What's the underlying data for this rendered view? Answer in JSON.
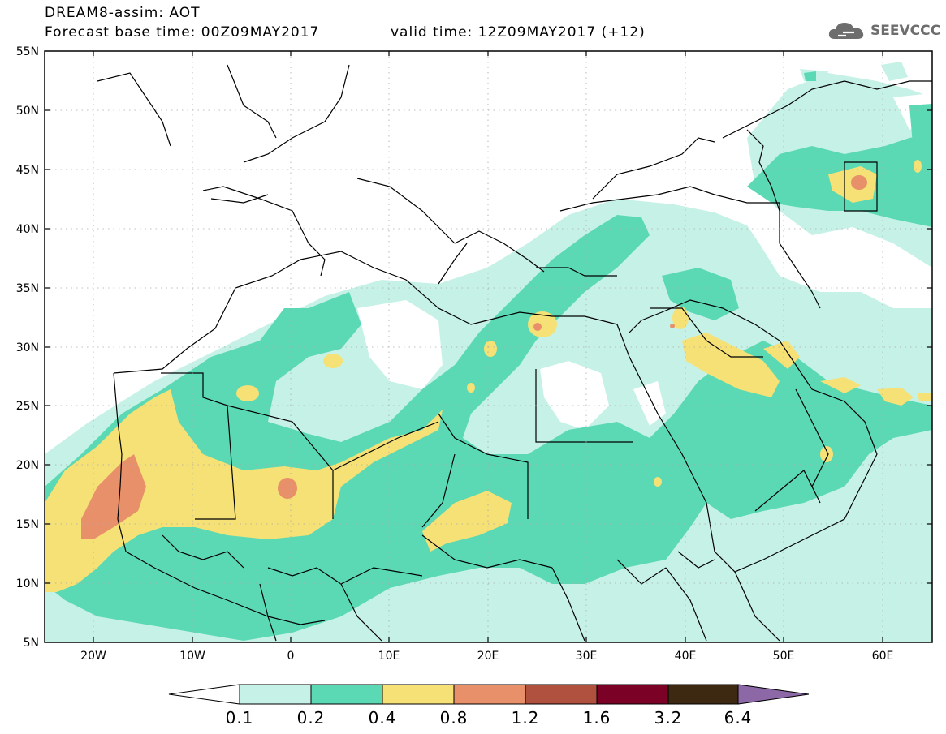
{
  "header": {
    "title": "DREAM8-assim: AOT",
    "base_time": "Forecast base time: 00Z09MAY2017",
    "valid_time": "valid time: 12Z09MAY2017 (+12)"
  },
  "logo": {
    "text": "SEEVCCC",
    "icon": "cloud-icon",
    "color": "#6d6d6d"
  },
  "map": {
    "lon_range": [
      -25,
      65
    ],
    "lat_range": [
      5,
      55
    ],
    "lat_ticks": [
      "5N",
      "10N",
      "15N",
      "20N",
      "25N",
      "30N",
      "35N",
      "40N",
      "45N",
      "50N",
      "55N"
    ],
    "lon_ticks": [
      "20W",
      "10W",
      "0",
      "10E",
      "20E",
      "30E",
      "40E",
      "50E",
      "60E"
    ],
    "grid": "dotted"
  },
  "colorbar": {
    "labels": [
      "0.1",
      "0.2",
      "0.4",
      "0.8",
      "1.2",
      "1.6",
      "3.2",
      "6.4"
    ],
    "colors": [
      "#ffffff",
      "#c6f1e6",
      "#5ad9b4",
      "#f5e176",
      "#e8906a",
      "#b0513f",
      "#7b0126",
      "#3d2812",
      "#8c68a6"
    ],
    "extend": "both"
  }
}
